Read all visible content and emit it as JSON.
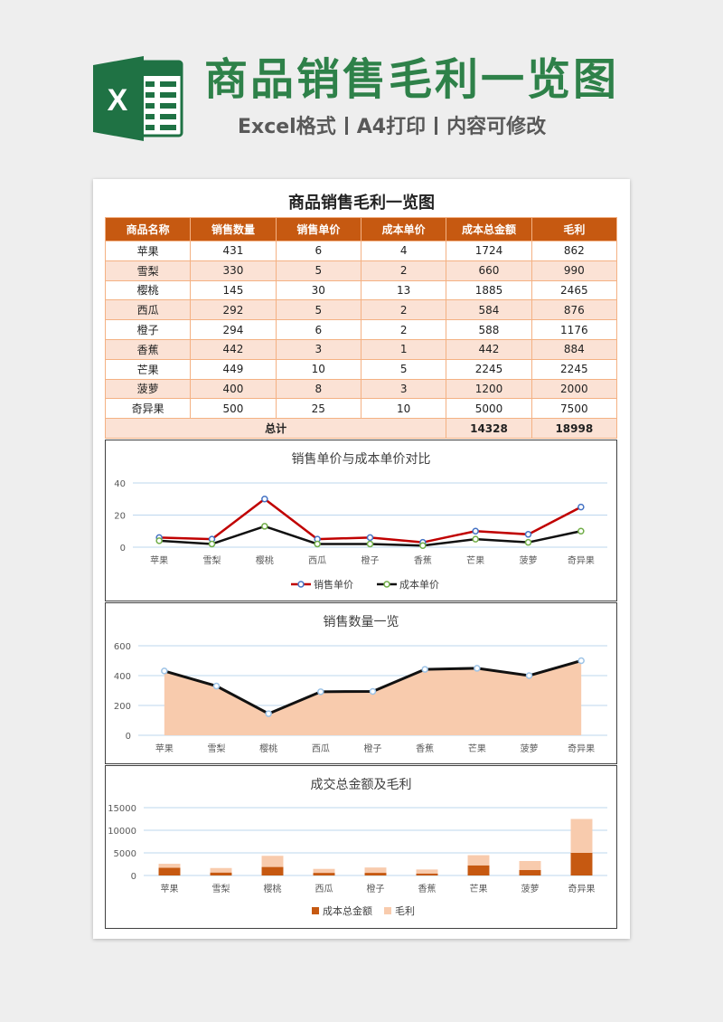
{
  "header": {
    "title": "商品销售毛利一览图",
    "subtitle_parts": [
      "Excel格式",
      "A4打印",
      "内容可修改"
    ]
  },
  "sheet": {
    "title": "商品销售毛利一览图",
    "columns": [
      "商品名称",
      "销售数量",
      "销售单价",
      "成本单价",
      "成本总金额",
      "毛利"
    ],
    "rows": [
      [
        "苹果",
        "431",
        "6",
        "4",
        "1724",
        "862"
      ],
      [
        "雪梨",
        "330",
        "5",
        "2",
        "660",
        "990"
      ],
      [
        "樱桃",
        "145",
        "30",
        "13",
        "1885",
        "2465"
      ],
      [
        "西瓜",
        "292",
        "5",
        "2",
        "584",
        "876"
      ],
      [
        "橙子",
        "294",
        "6",
        "2",
        "588",
        "1176"
      ],
      [
        "香蕉",
        "442",
        "3",
        "1",
        "442",
        "884"
      ],
      [
        "芒果",
        "449",
        "10",
        "5",
        "2245",
        "2245"
      ],
      [
        "菠萝",
        "400",
        "8",
        "3",
        "1200",
        "2000"
      ],
      [
        "奇异果",
        "500",
        "25",
        "10",
        "5000",
        "7500"
      ]
    ],
    "total_label": "总计",
    "total_cost": "14328",
    "total_profit": "18998"
  },
  "colors": {
    "brand_green": "#2e8149",
    "header_orange": "#c65911",
    "row_tint": "#fbe2d5",
    "line_red": "#c00000",
    "area_fill": "#f8cbad"
  },
  "chart_data": [
    {
      "type": "line",
      "title": "销售单价与成本单价对比",
      "categories": [
        "苹果",
        "雪梨",
        "樱桃",
        "西瓜",
        "橙子",
        "香蕉",
        "芒果",
        "菠萝",
        "奇异果"
      ],
      "series": [
        {
          "name": "销售单价",
          "values": [
            6,
            5,
            30,
            5,
            6,
            3,
            10,
            8,
            25
          ]
        },
        {
          "name": "成本单价",
          "values": [
            4,
            2,
            13,
            2,
            2,
            1,
            5,
            3,
            10
          ]
        }
      ],
      "ylim": [
        0,
        40
      ],
      "yticks": [
        0,
        20,
        40
      ],
      "grid": true,
      "legend": "bottom"
    },
    {
      "type": "area",
      "title": "销售数量一览",
      "categories": [
        "苹果",
        "雪梨",
        "樱桃",
        "西瓜",
        "橙子",
        "香蕉",
        "芒果",
        "菠萝",
        "奇异果"
      ],
      "values": [
        431,
        330,
        145,
        292,
        294,
        442,
        449,
        400,
        500
      ],
      "ylim": [
        0,
        600
      ],
      "yticks": [
        0,
        200,
        400,
        600
      ],
      "grid": true
    },
    {
      "type": "bar",
      "title": "成交总金额及毛利",
      "categories": [
        "苹果",
        "雪梨",
        "樱桃",
        "西瓜",
        "橙子",
        "香蕉",
        "芒果",
        "菠萝",
        "奇异果"
      ],
      "series": [
        {
          "name": "成本总金额",
          "values": [
            1724,
            660,
            1885,
            584,
            588,
            442,
            2245,
            1200,
            5000
          ]
        },
        {
          "name": "毛利",
          "values": [
            862,
            990,
            2465,
            876,
            1176,
            884,
            2245,
            2000,
            7500
          ]
        }
      ],
      "stacked": true,
      "ylim": [
        0,
        15000
      ],
      "yticks": [
        0,
        5000,
        10000,
        15000
      ],
      "grid": true,
      "legend": "bottom"
    }
  ]
}
